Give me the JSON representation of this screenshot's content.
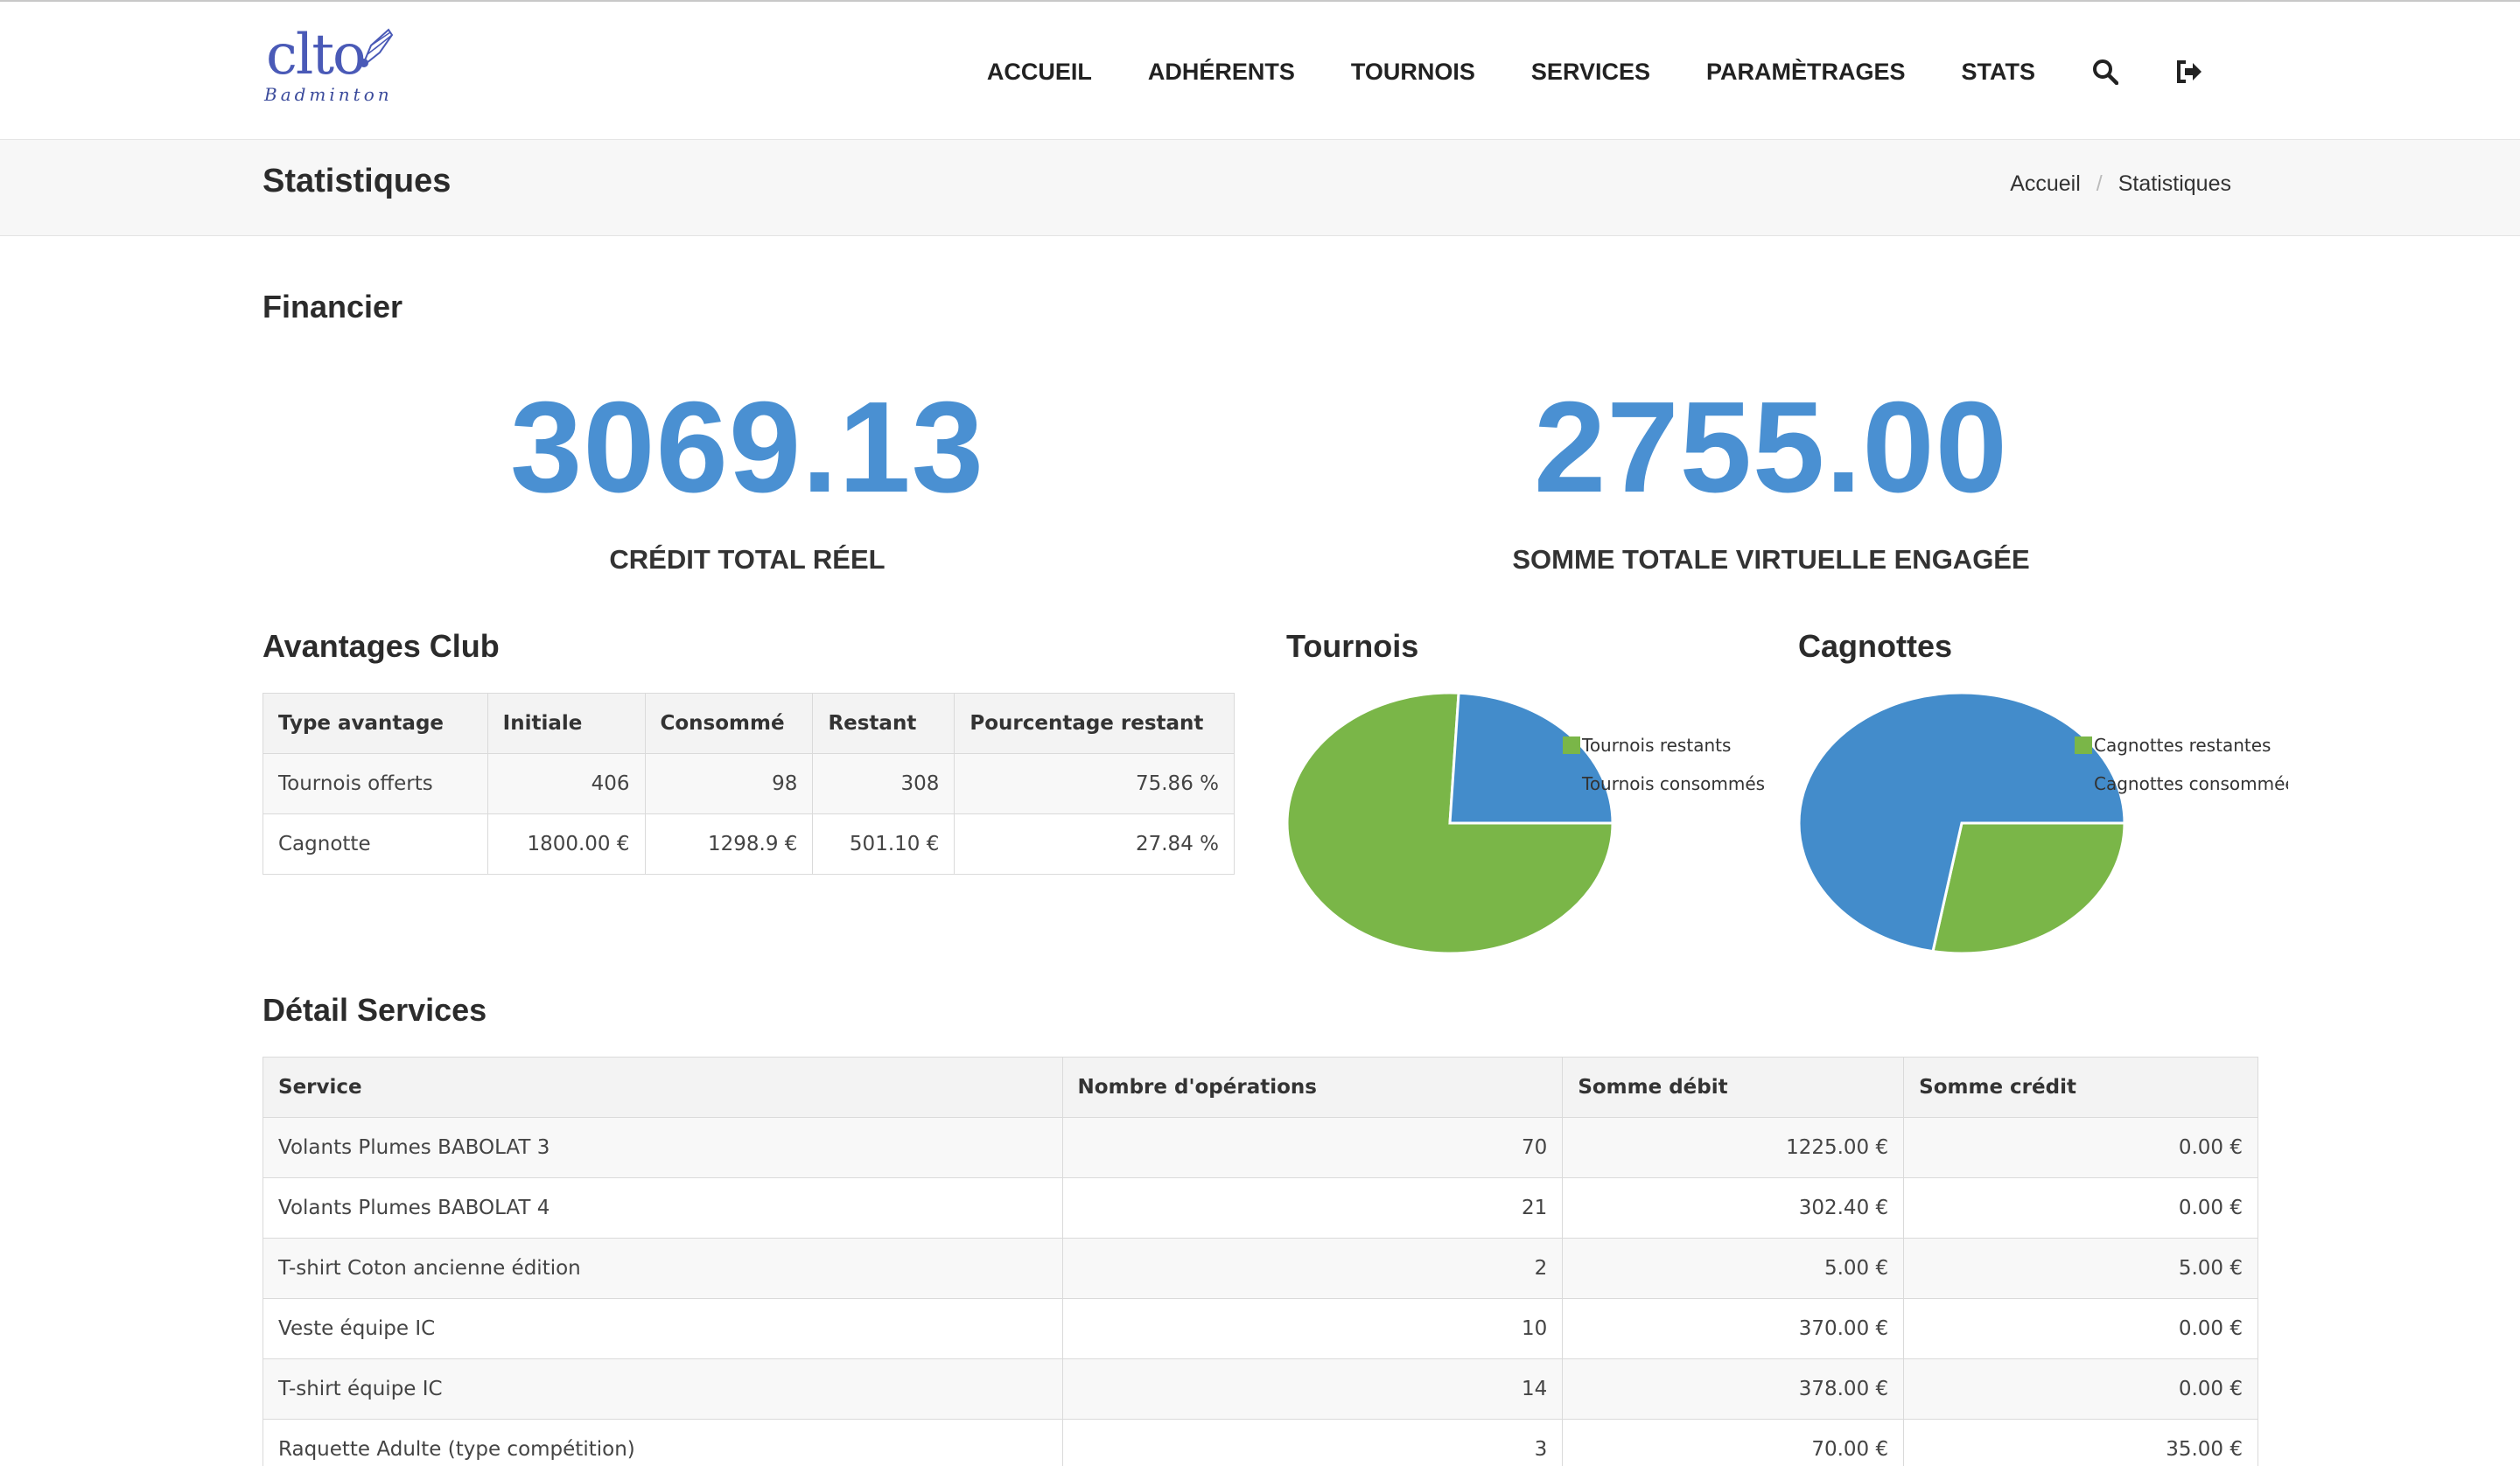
{
  "header": {
    "logo_text": "clto",
    "logo_subtext": "Badminton",
    "nav": [
      "ACCUEIL",
      "ADHÉRENTS",
      "TOURNOIS",
      "SERVICES",
      "PARAMÈTRAGES",
      "STATS"
    ],
    "icons": [
      "search-icon",
      "logout-icon"
    ]
  },
  "page": {
    "title": "Statistiques",
    "breadcrumb": [
      "Accueil",
      "Statistiques"
    ]
  },
  "financier": {
    "title": "Financier",
    "credit_value": "3069.13",
    "credit_label": "CRÉDIT TOTAL RÉEL",
    "somme_value": "2755.00",
    "somme_label": "SOMME TOTALE VIRTUELLE ENGAGÉE"
  },
  "avantages": {
    "title": "Avantages Club",
    "columns": [
      "Type avantage",
      "Initiale",
      "Consommé",
      "Restant",
      "Pourcentage restant"
    ],
    "rows": [
      [
        "Tournois offerts",
        "406",
        "98",
        "308",
        "75.86 %"
      ],
      [
        "Cagnotte",
        "1800.00 €",
        "1298.9 €",
        "501.10 €",
        "27.84 %"
      ]
    ]
  },
  "chart_data": [
    {
      "type": "pie",
      "title": "Tournois",
      "labels": [
        "Tournois restants",
        "Tournois consommés"
      ],
      "values": [
        308,
        98
      ],
      "colors": [
        "#7ab648",
        "#438ccb"
      ],
      "legend": "top-right"
    },
    {
      "type": "pie",
      "title": "Cagnottes",
      "labels": [
        "Cagnottes restantes",
        "Cagnottes consommées"
      ],
      "values": [
        501.1,
        1298.9
      ],
      "colors": [
        "#7ab648",
        "#438ccb"
      ],
      "legend": "top-right"
    }
  ],
  "services": {
    "title": "Détail Services",
    "columns": [
      "Service",
      "Nombre d'opérations",
      "Somme débit",
      "Somme crédit"
    ],
    "rows": [
      [
        "Volants Plumes BABOLAT 3",
        "70",
        "1225.00 €",
        "0.00 €"
      ],
      [
        "Volants Plumes BABOLAT 4",
        "21",
        "302.40 €",
        "0.00 €"
      ],
      [
        "T-shirt Coton ancienne édition",
        "2",
        "5.00 €",
        "5.00 €"
      ],
      [
        "Veste équipe IC",
        "10",
        "370.00 €",
        "0.00 €"
      ],
      [
        "T-shirt équipe IC",
        "14",
        "378.00 €",
        "0.00 €"
      ],
      [
        "Raquette Adulte (type compétition)",
        "3",
        "70.00 €",
        "35.00 €"
      ]
    ]
  }
}
